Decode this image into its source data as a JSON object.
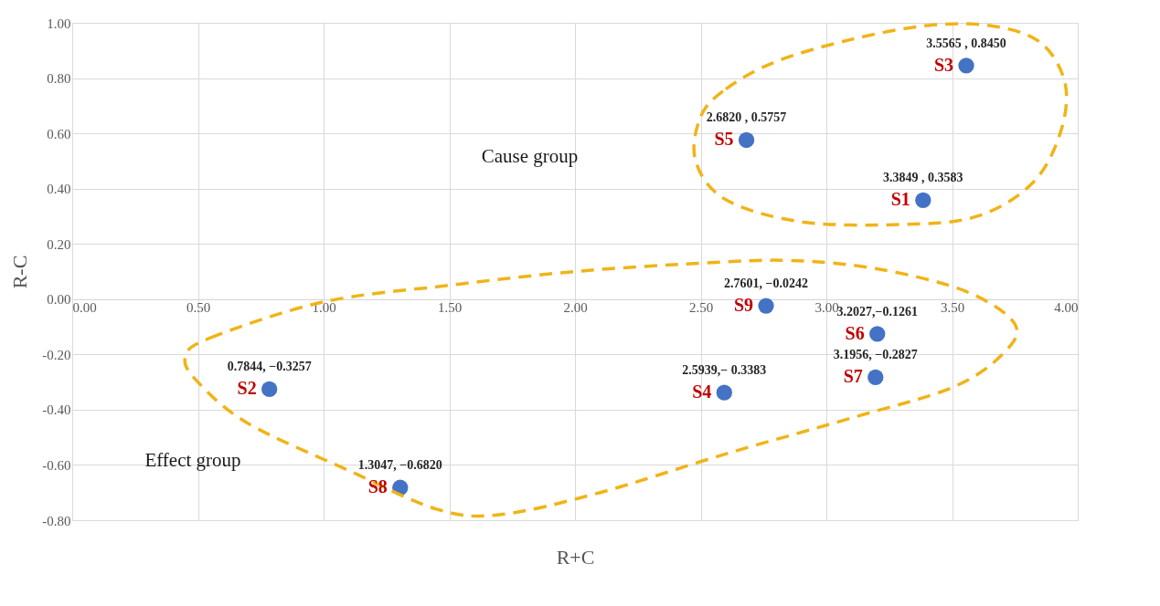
{
  "chart_data": {
    "type": "scatter",
    "xlabel": "R+C",
    "ylabel": "R-C",
    "xlim": [
      0,
      4
    ],
    "ylim": [
      -0.8,
      1.0
    ],
    "xticks": [
      {
        "value": 0,
        "label": "0.00"
      },
      {
        "value": 0.5,
        "label": "0.50"
      },
      {
        "value": 1,
        "label": "1.00"
      },
      {
        "value": 1.5,
        "label": "1.50"
      },
      {
        "value": 2,
        "label": "2.00"
      },
      {
        "value": 2.5,
        "label": "2.50"
      },
      {
        "value": 3,
        "label": "3.00"
      },
      {
        "value": 3.5,
        "label": "3.50"
      },
      {
        "value": 4,
        "label": "4.00"
      }
    ],
    "yticks": [
      {
        "value": -0.8,
        "label": "-0.80"
      },
      {
        "value": -0.6,
        "label": "-0.60"
      },
      {
        "value": -0.4,
        "label": "-0.40"
      },
      {
        "value": -0.2,
        "label": "-0.20"
      },
      {
        "value": 0,
        "label": "0.00"
      },
      {
        "value": 0.2,
        "label": "0.20"
      },
      {
        "value": 0.4,
        "label": "0.40"
      },
      {
        "value": 0.6,
        "label": "0.60"
      },
      {
        "value": 0.8,
        "label": "0.80"
      },
      {
        "value": 1.0,
        "label": "1.00"
      }
    ],
    "grid": true,
    "marker": "circle",
    "series": [
      {
        "color": "#4472c4",
        "x": [
          3.3849,
          0.7844,
          3.5565,
          2.5939,
          2.682,
          3.2027,
          3.1956,
          1.3047,
          2.7601
        ],
        "values": [
          0.3583,
          -0.3257,
          0.845,
          -0.3383,
          0.5757,
          -0.1261,
          -0.2827,
          -0.682,
          -0.0242
        ],
        "value_labels": [
          "3.3849 , 0.3583",
          "0.7844, −0.3257",
          "3.5565 , 0.8450",
          "2.5939,− 0.3383",
          "2.6820 , 0.5757",
          "3.2027,−0.1261",
          "3.1956, −0.2827",
          "1.3047, −0.6820",
          "2.7601, −0.0242"
        ]
      }
    ],
    "annotations": [
      {
        "text": "S1",
        "x": 3.3849,
        "y": 0.3583
      },
      {
        "text": "S2",
        "x": 0.7844,
        "y": -0.3257
      },
      {
        "text": "S3",
        "x": 3.5565,
        "y": 0.845
      },
      {
        "text": "S4",
        "x": 2.5939,
        "y": -0.3383
      },
      {
        "text": "S5",
        "x": 2.682,
        "y": 0.5757
      },
      {
        "text": "S6",
        "x": 3.2027,
        "y": -0.1261
      },
      {
        "text": "S7",
        "x": 3.1956,
        "y": -0.2827
      },
      {
        "text": "S8",
        "x": 1.3047,
        "y": -0.682
      },
      {
        "text": "S9",
        "x": 2.7601,
        "y": -0.0242
      },
      "Cause group",
      "Effect group"
    ]
  }
}
